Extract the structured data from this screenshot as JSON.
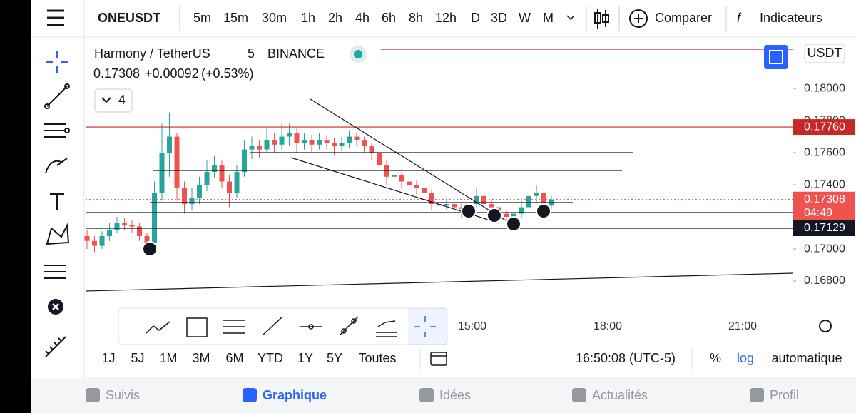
{
  "toolbar": {
    "symbol": "ONEUSDT",
    "intervals": [
      "5m",
      "15m",
      "30m",
      "1h",
      "2h",
      "4h",
      "6h",
      "8h",
      "12h",
      "D",
      "3D",
      "W",
      "M"
    ],
    "compare": "Comparer",
    "indicators": "Indicateurs"
  },
  "chart_data": {
    "type": "candlestick",
    "title": "Harmony / TetherUS",
    "interval": "5",
    "exchange": "BINANCE",
    "last": "0.17308",
    "change": "+0.00092",
    "change_pct": "(+0.53%)",
    "hidden_count": 4,
    "currency": "USDT",
    "up_color": "#26a69a",
    "down_color": "#ef5350",
    "ylim": [
      0.16609,
      0.18307
    ],
    "yticks": [
      {
        "value": 0.18,
        "label": "0.18000"
      },
      {
        "value": 0.178,
        "label": "0.17800"
      },
      {
        "value": 0.176,
        "label": "0.17600"
      },
      {
        "value": 0.174,
        "label": "0.17400"
      },
      {
        "value": 0.17,
        "label": "0.17000"
      },
      {
        "value": 0.168,
        "label": "0.16800"
      }
    ],
    "xticks": [
      "15:00",
      "18:00",
      "21:00"
    ],
    "price_labels": [
      {
        "value": 0.1776,
        "label": "0.17760",
        "color": "#c62828"
      },
      {
        "value": 0.17308,
        "label": "0.17308",
        "color": "#ef5350"
      },
      {
        "value": 0.17129,
        "label": "0.17129",
        "color": "#131722"
      }
    ],
    "countdown": "04:49",
    "candles": [
      [
        0.1708,
        0.1712,
        0.17,
        0.1705
      ],
      [
        0.1705,
        0.1708,
        0.1698,
        0.1702
      ],
      [
        0.1702,
        0.1711,
        0.17,
        0.1708
      ],
      [
        0.1708,
        0.1716,
        0.1705,
        0.1712
      ],
      [
        0.1712,
        0.172,
        0.171,
        0.1716
      ],
      [
        0.1716,
        0.1719,
        0.1712,
        0.1715
      ],
      [
        0.1715,
        0.1718,
        0.171,
        0.1714
      ],
      [
        0.1714,
        0.1716,
        0.1705,
        0.1708
      ],
      [
        0.1708,
        0.171,
        0.17,
        0.1704
      ],
      [
        0.1704,
        0.1742,
        0.1702,
        0.1735
      ],
      [
        0.1735,
        0.1778,
        0.173,
        0.176
      ],
      [
        0.176,
        0.1785,
        0.1745,
        0.177
      ],
      [
        0.177,
        0.1772,
        0.173,
        0.1738
      ],
      [
        0.1738,
        0.1742,
        0.1722,
        0.1728
      ],
      [
        0.1728,
        0.1738,
        0.1724,
        0.1732
      ],
      [
        0.1732,
        0.1745,
        0.1728,
        0.174
      ],
      [
        0.174,
        0.1755,
        0.1736,
        0.1748
      ],
      [
        0.1748,
        0.1758,
        0.1744,
        0.1752
      ],
      [
        0.1752,
        0.1755,
        0.1738,
        0.1742
      ],
      [
        0.1742,
        0.1746,
        0.1726,
        0.1735
      ],
      [
        0.1735,
        0.1752,
        0.1732,
        0.1748
      ],
      [
        0.1748,
        0.1768,
        0.1745,
        0.1762
      ],
      [
        0.1762,
        0.177,
        0.1756,
        0.1764
      ],
      [
        0.1764,
        0.1768,
        0.1757,
        0.1762
      ],
      [
        0.1762,
        0.1775,
        0.176,
        0.1768
      ],
      [
        0.1768,
        0.1772,
        0.176,
        0.1765
      ],
      [
        0.1765,
        0.1778,
        0.1762,
        0.177
      ],
      [
        0.177,
        0.1778,
        0.1764,
        0.1772
      ],
      [
        0.1772,
        0.1775,
        0.176,
        0.1766
      ],
      [
        0.1766,
        0.1772,
        0.1762,
        0.1768
      ],
      [
        0.1768,
        0.1771,
        0.176,
        0.1765
      ],
      [
        0.1765,
        0.1772,
        0.1762,
        0.1768
      ],
      [
        0.1768,
        0.1771,
        0.1762,
        0.1766
      ],
      [
        0.1766,
        0.1769,
        0.1758,
        0.1764
      ],
      [
        0.1764,
        0.177,
        0.1761,
        0.1766
      ],
      [
        0.1766,
        0.1774,
        0.1763,
        0.177
      ],
      [
        0.177,
        0.1773,
        0.1764,
        0.1768
      ],
      [
        0.1768,
        0.177,
        0.176,
        0.1764
      ],
      [
        0.1764,
        0.1766,
        0.1755,
        0.176
      ],
      [
        0.176,
        0.1762,
        0.1748,
        0.1752
      ],
      [
        0.1752,
        0.1755,
        0.174,
        0.1745
      ],
      [
        0.1745,
        0.175,
        0.1741,
        0.1746
      ],
      [
        0.1746,
        0.1748,
        0.1738,
        0.1742
      ],
      [
        0.1742,
        0.1745,
        0.1736,
        0.174
      ],
      [
        0.174,
        0.1743,
        0.1734,
        0.1738
      ],
      [
        0.1738,
        0.174,
        0.173,
        0.1735
      ],
      [
        0.1735,
        0.1737,
        0.1724,
        0.1728
      ],
      [
        0.1728,
        0.1731,
        0.1723,
        0.1727
      ],
      [
        0.1727,
        0.1732,
        0.1724,
        0.1728
      ],
      [
        0.1728,
        0.173,
        0.1721,
        0.1726
      ],
      [
        0.1726,
        0.1729,
        0.1719,
        0.1725
      ],
      [
        0.1725,
        0.1731,
        0.1722,
        0.1728
      ],
      [
        0.1728,
        0.1738,
        0.1726,
        0.1733
      ],
      [
        0.1733,
        0.1735,
        0.1724,
        0.1728
      ],
      [
        0.1728,
        0.1731,
        0.1722,
        0.1726
      ],
      [
        0.1726,
        0.1728,
        0.1718,
        0.1722
      ],
      [
        0.1722,
        0.1724,
        0.1714,
        0.172
      ],
      [
        0.172,
        0.1725,
        0.1716,
        0.1722
      ],
      [
        0.1722,
        0.173,
        0.1719,
        0.1726
      ],
      [
        0.1726,
        0.1738,
        0.1724,
        0.1733
      ],
      [
        0.1733,
        0.174,
        0.1729,
        0.1735
      ],
      [
        0.1735,
        0.1737,
        0.1724,
        0.1727
      ],
      [
        0.1727,
        0.1733,
        0.1725,
        0.17308
      ]
    ]
  },
  "range_bar": {
    "ranges": [
      "1J",
      "5J",
      "1M",
      "3M",
      "6M",
      "YTD",
      "1Y",
      "5Y",
      "Toutes"
    ],
    "clock": "16:50:08 (UTC-5)",
    "percent": "%",
    "log": "log",
    "auto": "automatique"
  },
  "nav": [
    "Suivis",
    "Graphique",
    "Idées",
    "Actualités",
    "Profil"
  ]
}
